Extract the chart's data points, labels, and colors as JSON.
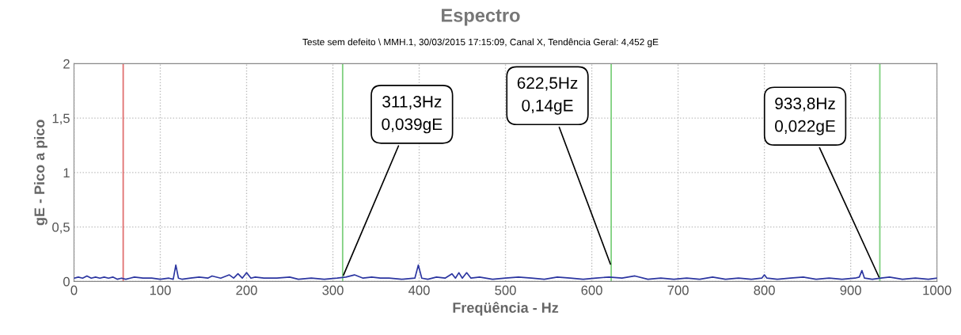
{
  "chart_data": {
    "type": "line",
    "title": "Espectro",
    "subtitle": "Teste sem defeito \\ MMH.1, 30/03/2015 17:15:09, Canal X, Tendência Geral: 4,452 gE",
    "xlabel": "Freqüência - Hz",
    "ylabel": "gE - Pico a pico",
    "xlim": [
      0,
      1000
    ],
    "xticks": [
      0,
      100,
      200,
      300,
      400,
      500,
      600,
      700,
      800,
      900,
      1000
    ],
    "ylim": [
      0,
      2
    ],
    "yticks": [
      0,
      {
        "value": 0.5,
        "label": "0,5"
      },
      1,
      {
        "value": 1.5,
        "label": "1,5"
      },
      2
    ],
    "grid": true,
    "legend": false,
    "marker": "none",
    "line_style": "solid",
    "series": [
      {
        "color": "#2b35a0",
        "x": [
          0,
          5,
          10,
          15,
          20,
          25,
          30,
          35,
          40,
          45,
          50,
          55,
          60,
          65,
          70,
          80,
          90,
          100,
          110,
          115,
          118,
          121,
          125,
          135,
          145,
          155,
          160,
          170,
          180,
          185,
          190,
          195,
          200,
          205,
          210,
          220,
          235,
          250,
          260,
          275,
          290,
          305,
          315,
          325,
          335,
          345,
          355,
          365,
          380,
          395,
          399,
          403,
          410,
          420,
          430,
          438,
          442,
          446,
          450,
          455,
          460,
          470,
          485,
          500,
          515,
          530,
          545,
          560,
          575,
          590,
          605,
          620,
          635,
          650,
          665,
          680,
          695,
          710,
          725,
          740,
          755,
          770,
          785,
          797,
          800,
          803,
          815,
          830,
          845,
          860,
          875,
          890,
          905,
          910,
          913,
          916,
          925,
          935,
          945,
          960,
          975,
          990,
          1000
        ],
        "values": [
          0.03,
          0.04,
          0.03,
          0.05,
          0.03,
          0.04,
          0.03,
          0.04,
          0.03,
          0.04,
          0.02,
          0.03,
          0.02,
          0.03,
          0.04,
          0.03,
          0.03,
          0.02,
          0.03,
          0.02,
          0.15,
          0.03,
          0.02,
          0.03,
          0.04,
          0.03,
          0.05,
          0.03,
          0.06,
          0.03,
          0.07,
          0.03,
          0.08,
          0.03,
          0.04,
          0.03,
          0.03,
          0.04,
          0.02,
          0.03,
          0.02,
          0.03,
          0.04,
          0.06,
          0.03,
          0.04,
          0.03,
          0.03,
          0.02,
          0.03,
          0.15,
          0.03,
          0.02,
          0.04,
          0.03,
          0.07,
          0.03,
          0.08,
          0.03,
          0.08,
          0.03,
          0.04,
          0.02,
          0.03,
          0.04,
          0.03,
          0.02,
          0.04,
          0.03,
          0.02,
          0.03,
          0.04,
          0.03,
          0.05,
          0.02,
          0.03,
          0.02,
          0.03,
          0.02,
          0.04,
          0.02,
          0.03,
          0.02,
          0.03,
          0.06,
          0.03,
          0.02,
          0.03,
          0.04,
          0.02,
          0.03,
          0.02,
          0.03,
          0.04,
          0.1,
          0.03,
          0.02,
          0.03,
          0.04,
          0.02,
          0.03,
          0.02,
          0.03
        ]
      }
    ],
    "ref_lines": [
      {
        "axis": "x",
        "value": 57,
        "color": "#e07070"
      },
      {
        "axis": "x",
        "value": 311.3,
        "color": "#7fd07f"
      },
      {
        "axis": "x",
        "value": 622.5,
        "color": "#7fd07f"
      },
      {
        "axis": "x",
        "value": 933.8,
        "color": "#7fd07f"
      }
    ],
    "annotations": [
      {
        "text": "311,3Hz\n0,039gE",
        "x": 311.3,
        "y": 0.039
      },
      {
        "text": "622,5Hz\n0,14gE",
        "x": 622.5,
        "y": 0.14
      },
      {
        "text": "933,8Hz\n0,022gE",
        "x": 933.8,
        "y": 0.022
      }
    ]
  }
}
